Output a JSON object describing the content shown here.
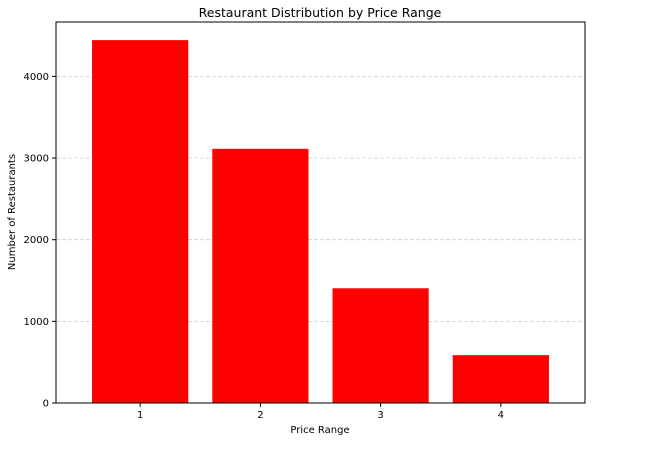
{
  "chart_data": {
    "type": "bar",
    "title": "Restaurant Distribution by Price Range",
    "xlabel": "Price Range",
    "ylabel": "Number of Restaurants",
    "categories": [
      "1",
      "2",
      "3",
      "4"
    ],
    "values": [
      4444,
      3113,
      1405,
      586
    ],
    "ylim": [
      0,
      4666
    ],
    "yticks": [
      0,
      1000,
      2000,
      3000,
      4000
    ],
    "grid": "y-dashed",
    "bar_color": "#ff0000",
    "grid_color": "#cccccc"
  }
}
